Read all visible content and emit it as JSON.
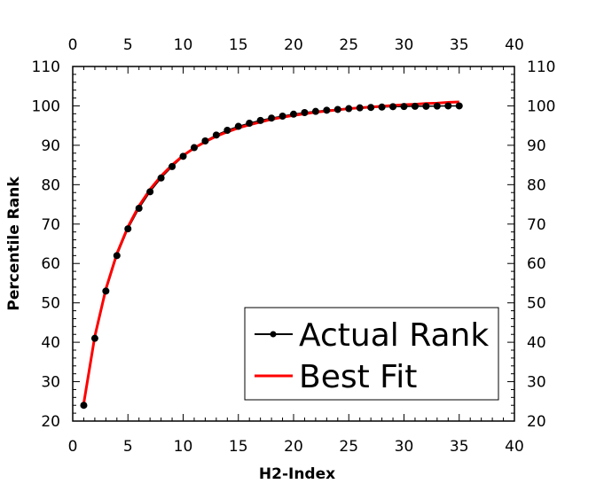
{
  "chart_data": {
    "type": "line",
    "xlabel": "H2-Index",
    "ylabel": "Percentile Rank",
    "xlim": [
      0,
      40
    ],
    "ylim": [
      20,
      110
    ],
    "x_ticks": [
      0,
      5,
      10,
      15,
      20,
      25,
      30,
      35,
      40
    ],
    "y_ticks": [
      20,
      30,
      40,
      50,
      60,
      70,
      80,
      90,
      100,
      110
    ],
    "x_ticks_top": [
      0,
      5,
      10,
      15,
      20,
      25,
      30,
      35,
      40
    ],
    "y_ticks_right": [
      20,
      30,
      40,
      50,
      60,
      70,
      80,
      90,
      100,
      110
    ],
    "grid": false,
    "legend_position": "bottom-right",
    "series": [
      {
        "name": "Actual Rank",
        "color": "#000000",
        "marker": "circle",
        "x": [
          1,
          2,
          3,
          4,
          5,
          6,
          7,
          8,
          9,
          10,
          11,
          12,
          13,
          14,
          15,
          16,
          17,
          18,
          19,
          20,
          21,
          22,
          23,
          24,
          25,
          26,
          27,
          28,
          29,
          30,
          31,
          32,
          33,
          34,
          35
        ],
        "y": [
          24,
          41,
          53,
          62,
          68.8,
          74,
          78.2,
          81.7,
          84.6,
          87.2,
          89.4,
          91.1,
          92.6,
          93.8,
          94.8,
          95.6,
          96.3,
          96.9,
          97.4,
          97.9,
          98.3,
          98.6,
          98.9,
          99.1,
          99.3,
          99.5,
          99.6,
          99.7,
          99.8,
          99.85,
          99.9,
          99.9,
          99.95,
          100,
          100
        ]
      },
      {
        "name": "Best Fit",
        "color": "#ff0000",
        "marker": "none",
        "x": [
          1,
          2,
          3,
          4,
          5,
          6,
          7,
          8,
          9,
          10,
          11,
          12,
          13,
          14,
          15,
          16,
          17,
          18,
          19,
          20,
          21,
          22,
          23,
          24,
          25,
          26,
          27,
          28,
          29,
          30,
          31,
          32,
          33,
          34,
          35
        ],
        "y": [
          24.5,
          41.5,
          53.5,
          62.5,
          69.3,
          74.6,
          78.8,
          82.2,
          85.0,
          87.4,
          89.3,
          90.9,
          92.3,
          93.4,
          94.4,
          95.2,
          95.9,
          96.6,
          97.1,
          97.6,
          98.0,
          98.4,
          98.7,
          99.0,
          99.3,
          99.5,
          99.7,
          99.9,
          100.1,
          100.3,
          100.4,
          100.6,
          100.7,
          100.9,
          101.0
        ]
      }
    ]
  }
}
